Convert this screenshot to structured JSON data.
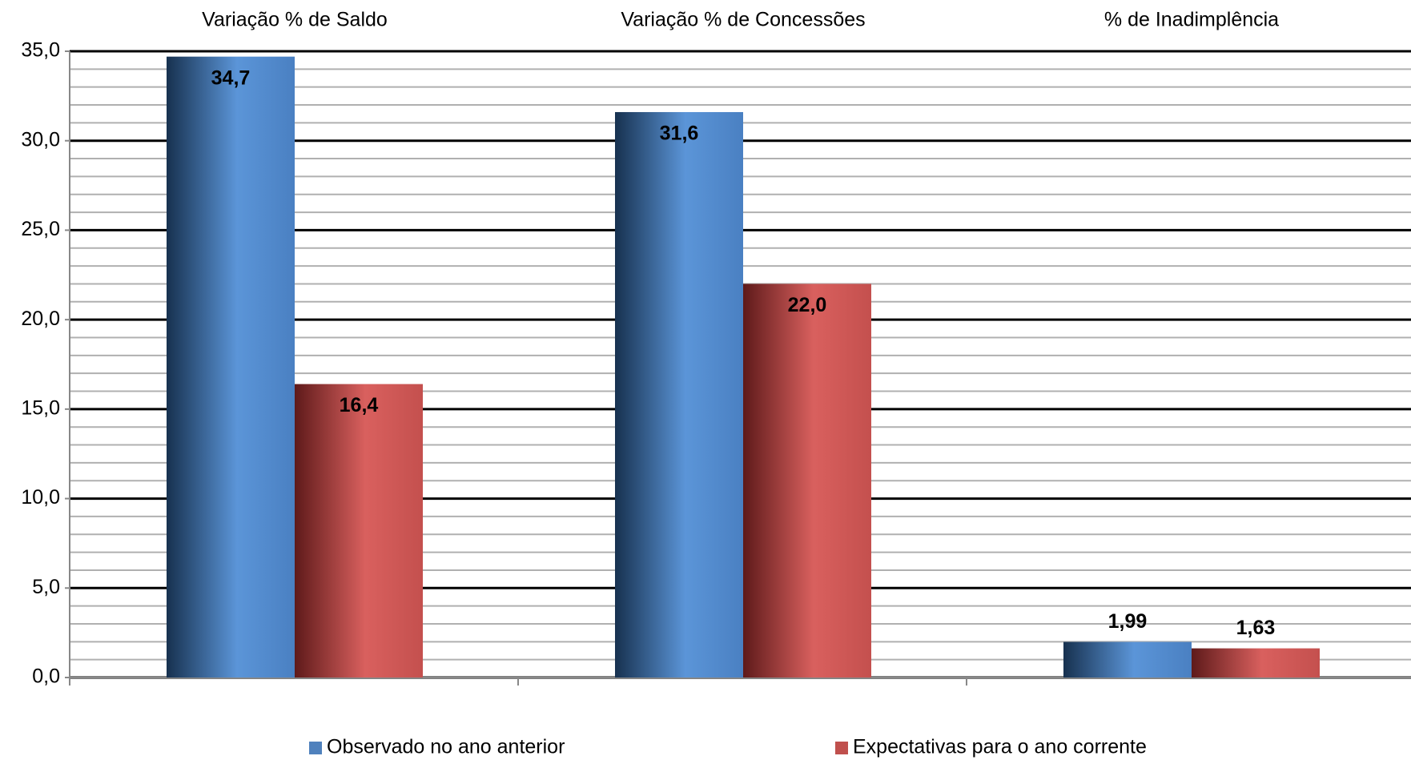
{
  "chart_data": {
    "type": "bar",
    "categories": [
      "Variação % de Saldo",
      "Variação % de Concessões",
      "% de Inadimplência"
    ],
    "series": [
      {
        "name": "Observado no ano anterior",
        "color": "#4f81bd",
        "values": [
          34.7,
          31.6,
          1.99
        ],
        "value_labels": [
          "34,7",
          "31,6",
          "1,99"
        ]
      },
      {
        "name": "Expectativas para o ano corrente",
        "color": "#c0504d",
        "values": [
          16.4,
          22.0,
          1.63
        ],
        "value_labels": [
          "16,4",
          "22,0",
          "1,63"
        ]
      }
    ],
    "ylim": [
      0,
      35
    ],
    "yticks": [
      {
        "value": 0,
        "label": "0,0"
      },
      {
        "value": 5,
        "label": "5,0"
      },
      {
        "value": 10,
        "label": "10,0"
      },
      {
        "value": 15,
        "label": "15,0"
      },
      {
        "value": 20,
        "label": "20,0"
      },
      {
        "value": 25,
        "label": "25,0"
      },
      {
        "value": 30,
        "label": "30,0"
      },
      {
        "value": 35,
        "label": "35,0"
      }
    ],
    "grid": true,
    "legend": "bottom"
  }
}
